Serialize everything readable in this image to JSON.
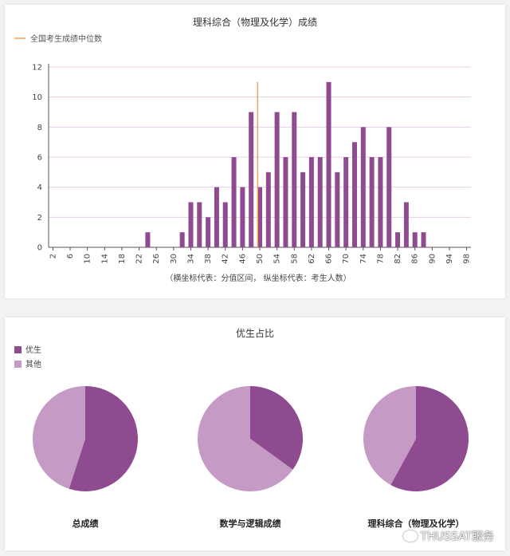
{
  "chart_data": [
    {
      "type": "bar",
      "title": "理科综合（物理及化学）成绩",
      "legend": [
        {
          "name": "全国考生成绩中位数",
          "color": "#f4a259",
          "kind": "line"
        }
      ],
      "x": [
        2,
        4,
        6,
        8,
        10,
        12,
        14,
        16,
        18,
        20,
        22,
        24,
        26,
        28,
        30,
        32,
        34,
        36,
        38,
        40,
        42,
        44,
        46,
        48,
        50,
        52,
        54,
        56,
        58,
        60,
        62,
        64,
        66,
        68,
        70,
        72,
        74,
        76,
        78,
        80,
        82,
        84,
        86,
        88,
        90,
        92,
        94,
        96,
        98
      ],
      "values": [
        0,
        0,
        0,
        0,
        0,
        0,
        0,
        0,
        0,
        0,
        0,
        1,
        0,
        0,
        0,
        1,
        3,
        3,
        2,
        4,
        3,
        6,
        4,
        9,
        4,
        5,
        9,
        6,
        9,
        5,
        6,
        6,
        11,
        5,
        6,
        7,
        8,
        6,
        6,
        8,
        1,
        3,
        1,
        1,
        0,
        0,
        0,
        0,
        0
      ],
      "xticks": [
        2,
        6,
        10,
        14,
        18,
        22,
        26,
        30,
        34,
        38,
        42,
        46,
        50,
        54,
        58,
        62,
        66,
        70,
        74,
        78,
        82,
        86,
        90,
        94,
        98
      ],
      "ylim": [
        0,
        12
      ],
      "yticks": [
        0,
        2,
        4,
        6,
        8,
        10,
        12
      ],
      "median": 49.5,
      "median_top": 11,
      "axis_note": "（横坐标代表：分值区间，  纵坐标代表：考生人数）",
      "grid": true,
      "bar_color": "#8e4b8f"
    },
    {
      "type": "pie",
      "title": "优生占比",
      "legend": [
        {
          "name": "优生",
          "color": "#8e4b8f"
        },
        {
          "name": "其他",
          "color": "#c59ac4"
        }
      ],
      "pies": [
        {
          "label": "总成绩",
          "values": [
            0.55,
            0.45
          ]
        },
        {
          "label": "数学与逻辑成绩",
          "values": [
            0.35,
            0.65
          ]
        },
        {
          "label": "理科综合（物理及化学）",
          "values": [
            0.58,
            0.42
          ]
        }
      ]
    }
  ],
  "watermark": "THUSSAT服务"
}
